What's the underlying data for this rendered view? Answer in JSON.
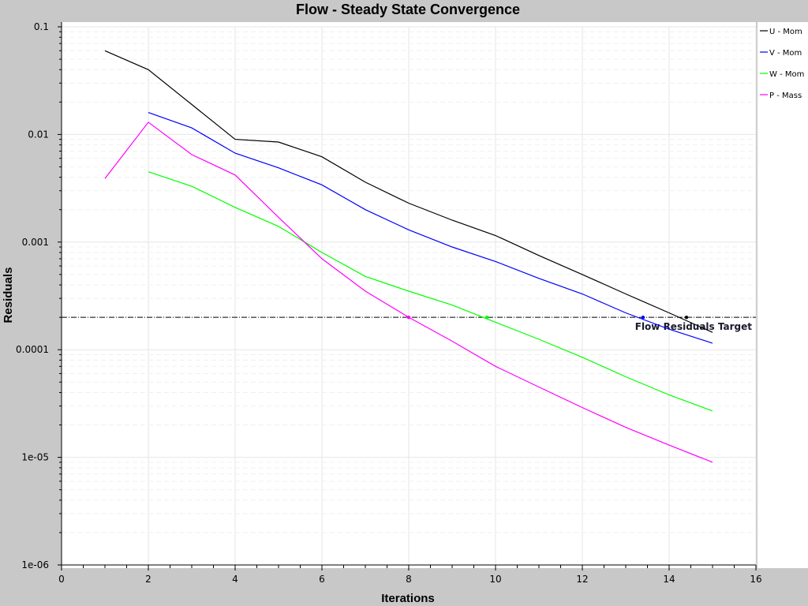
{
  "chart_data": {
    "type": "line",
    "title": "Flow - Steady State Convergence",
    "xlabel": "Iterations",
    "ylabel": "Residuals",
    "yscale": "log",
    "xlim": [
      0,
      16
    ],
    "ylim": [
      1e-06,
      0.1
    ],
    "xticks": [
      0,
      2,
      4,
      6,
      8,
      10,
      12,
      14,
      16
    ],
    "yticks": [
      1e-06,
      1e-05,
      0.0001,
      0.001,
      0.01,
      0.1
    ],
    "ytick_labels": [
      "1e-06",
      "1e-05",
      "0.0001",
      "0.001",
      "0.01",
      "0.1"
    ],
    "grid": true,
    "legend_position": "right",
    "series": [
      {
        "name": "U - Mom",
        "color": "#000000",
        "x": [
          1,
          2,
          3,
          4,
          5,
          6,
          7,
          8,
          9,
          10,
          11,
          12,
          13,
          14,
          15
        ],
        "y": [
          0.06,
          0.04,
          0.019,
          0.009,
          0.0085,
          0.0062,
          0.0036,
          0.0023,
          0.0016,
          0.00115,
          0.00075,
          0.0005,
          0.00033,
          0.00022,
          0.000145
        ]
      },
      {
        "name": "V - Mom",
        "color": "#0000ff",
        "x": [
          2,
          3,
          4,
          5,
          6,
          7,
          8,
          9,
          10,
          11,
          12,
          13,
          14,
          15
        ],
        "y": [
          0.016,
          0.0115,
          0.0067,
          0.0049,
          0.0034,
          0.002,
          0.0013,
          0.0009,
          0.00066,
          0.00046,
          0.00033,
          0.00022,
          0.000155,
          0.000115
        ]
      },
      {
        "name": "W - Mom",
        "color": "#00ff00",
        "x": [
          2,
          3,
          4,
          5,
          6,
          7,
          8,
          9,
          10,
          11,
          12,
          13,
          14,
          15
        ],
        "y": [
          0.0045,
          0.0033,
          0.0021,
          0.0014,
          0.0008,
          0.00048,
          0.00035,
          0.00026,
          0.00018,
          0.000125,
          8.5e-05,
          5.6e-05,
          3.8e-05,
          2.7e-05
        ]
      },
      {
        "name": "P - Mass",
        "color": "#ff00ff",
        "x": [
          1,
          2,
          3,
          4,
          5,
          6,
          7,
          8,
          9,
          10,
          11,
          12,
          13,
          14,
          15
        ],
        "y": [
          0.0039,
          0.013,
          0.0065,
          0.0042,
          0.0017,
          0.0007,
          0.00035,
          0.0002,
          0.00012,
          7e-05,
          4.5e-05,
          2.9e-05,
          1.9e-05,
          1.3e-05,
          9e-06
        ]
      }
    ],
    "target": {
      "label": "Flow Residuals Target",
      "value": 0.0002,
      "color": "#000000",
      "markers": [
        {
          "series": "U - Mom",
          "x": 14.4,
          "y": 0.0002
        },
        {
          "series": "V - Mom",
          "x": 13.4,
          "y": 0.0002
        },
        {
          "series": "W - Mom",
          "x": 9.8,
          "y": 0.0002
        },
        {
          "series": "P - Mass",
          "x": 8.0,
          "y": 0.0002
        }
      ]
    }
  }
}
